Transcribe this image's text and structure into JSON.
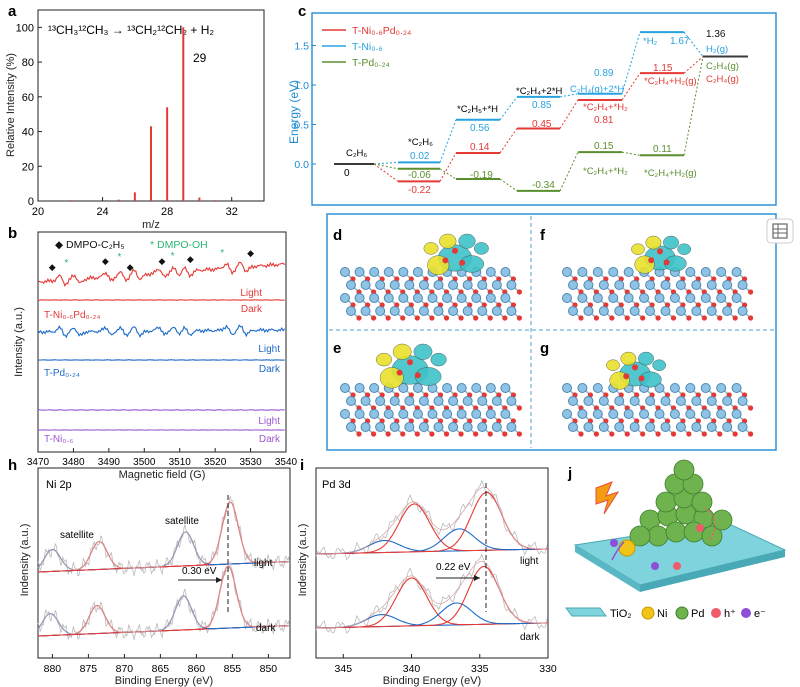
{
  "panel_labels": [
    "a",
    "b",
    "c",
    "d",
    "e",
    "f",
    "g",
    "h",
    "i",
    "j"
  ],
  "panel_a": {
    "reaction": "¹³CH₃¹²CH₃ → ¹³CH₂¹²CH₂ + H₂",
    "peak_label": "29"
  },
  "panel_b": {
    "legend_1": "◆ DMPO-C₂H₅",
    "legend_2": "* DMPO-OH",
    "samples": [
      {
        "name": "T-Ni₀.₆Pd₀.₂₄",
        "light": "Light",
        "dark": "Dark",
        "color": "#e53935"
      },
      {
        "name": "T-Pd₀.₂₄",
        "light": "Light",
        "dark": "Dark",
        "color": "#1e6bc7"
      },
      {
        "name": "T-Ni₀.₆",
        "light": "Light",
        "dark": "Dark",
        "color": "#9b59d0"
      }
    ]
  },
  "panel_c": {
    "legend": [
      {
        "name": "T-Ni₀.₆Pd₀.₂₄",
        "color": "#e53935"
      },
      {
        "name": "T-Ni₀.₆",
        "color": "#29a3e0"
      },
      {
        "name": "T-Pd₀.₂₄",
        "color": "#5a8f2e"
      }
    ],
    "species": {
      "s0": "C₂H₆",
      "s1": "*C₂H₆",
      "s2": "*C₂H₅+*H",
      "s3": "*C₂H₄+2*H",
      "s4_ni": "C₂H₄(g)+2*H",
      "s4_pd": "*C₂H₄+*H₂",
      "s5_ni": "*H₂",
      "s5_pd": "*C₂H₄+H₂(g)",
      "s6a": "H₂(g)",
      "s6b": "C₂H₄(g)"
    },
    "values": {
      "v0": "0",
      "v1_ni": "0.02",
      "v1_pd": "-0.06",
      "v1_nipd": "-0.22",
      "v2_ni": "0.56",
      "v2_nipd": "0.14",
      "v2_pd": "-0.19",
      "v3_ni": "0.85",
      "v3_nipd": "0.45",
      "v3_pd": "-0.34",
      "v4_ni": "0.89",
      "v4_nipd": "0.81",
      "v4_pd": "0.15",
      "v5_ni": "1.67",
      "v5_nipd": "1.15",
      "v5_pd": "0.11",
      "v6": "1.36"
    }
  },
  "panel_d_to_g": {
    "labels": [
      "d",
      "f",
      "e",
      "g"
    ]
  },
  "panel_h": {
    "title": "Ni 2p",
    "satellite_1": "satellite",
    "satellite_2": "satellite",
    "shift": "0.30 eV",
    "light": "light",
    "dark": "dark"
  },
  "panel_i": {
    "title": "Pd 3d",
    "shift": "0.22 eV",
    "light": "light",
    "dark": "dark"
  },
  "panel_j": {
    "legend": [
      {
        "label": "TiO₂",
        "color": "#7fd3dc"
      },
      {
        "label": "Ni",
        "color": "#f2c418"
      },
      {
        "label": "Pd",
        "color": "#6fb34f"
      },
      {
        "label": "h⁺",
        "color": "#ef5b6b"
      },
      {
        "label": "e⁻",
        "color": "#8e4fd8"
      }
    ]
  },
  "chart_data": [
    {
      "id": "a",
      "type": "bar",
      "title": "¹³CH₃¹²CH₃ → ¹³CH₂¹²CH₂ + H₂",
      "xlabel": "m/z",
      "ylabel": "Relative Intensity (%)",
      "xlim": [
        20,
        34
      ],
      "ylim": [
        0,
        110
      ],
      "x_ticks": [
        "20",
        "24",
        "28",
        "32"
      ],
      "y_ticks": [
        "0",
        "20",
        "40",
        "60",
        "80",
        "100"
      ],
      "x": [
        22,
        25,
        26,
        27,
        28,
        29,
        30,
        31
      ],
      "values": [
        0.5,
        0.8,
        5,
        43,
        54,
        100,
        2,
        0.5
      ],
      "color": "#e53935"
    },
    {
      "id": "b",
      "type": "line",
      "xlabel": "Magnetic field (G)",
      "ylabel": "Intensity (a.u.)",
      "xlim": [
        3470,
        3540
      ],
      "x_ticks": [
        "3470",
        "3480",
        "3490",
        "3500",
        "3510",
        "3520",
        "3530",
        "3540"
      ]
    },
    {
      "id": "c",
      "type": "line",
      "ylabel": "Energy (eV)",
      "ylim": [
        -0.5,
        2.0
      ],
      "y_ticks": [
        "0.0",
        "0.5",
        "1.0",
        "1.5"
      ],
      "categories": [
        "C₂H₆",
        "*C₂H₆",
        "*C₂H₅+*H",
        "*C₂H₄+2*H",
        "C₂H₄(g)+2*H / *C₂H₄+*H₂",
        "*H₂ / *C₂H₄+H₂(g)",
        "H₂(g) + C₂H₄(g)"
      ],
      "series": [
        {
          "name": "T-Ni₀.₆Pd₀.₂₄",
          "values": [
            0,
            -0.22,
            0.14,
            0.45,
            0.81,
            1.15,
            1.36
          ]
        },
        {
          "name": "T-Ni₀.₆",
          "values": [
            0,
            0.02,
            0.56,
            0.85,
            0.89,
            1.67,
            1.36
          ]
        },
        {
          "name": "T-Pd₀.₂₄",
          "values": [
            0,
            -0.06,
            -0.19,
            -0.34,
            0.15,
            0.11,
            1.36
          ]
        }
      ]
    },
    {
      "id": "h",
      "type": "line",
      "xlabel": "Binding Energy (eV)",
      "ylabel": "Indensity (a.u.)",
      "xlim": [
        882,
        847
      ],
      "x_ticks": [
        "880",
        "875",
        "870",
        "865",
        "860",
        "855",
        "850"
      ],
      "peaks_light": [
        880,
        873.5,
        861.5,
        855.3
      ],
      "peaks_dark": [
        880.3,
        873.8,
        861.8,
        855.6
      ]
    },
    {
      "id": "i",
      "type": "line",
      "xlabel": "Binding Energy (eV)",
      "ylabel": "Indensity (a.u.)",
      "xlim": [
        347,
        330
      ],
      "x_ticks": [
        "345",
        "340",
        "335",
        "330"
      ],
      "peaks_light": [
        342,
        339.8,
        336.5,
        334.5
      ],
      "peaks_dark": [
        342.2,
        340,
        336.7,
        334.7
      ]
    }
  ]
}
